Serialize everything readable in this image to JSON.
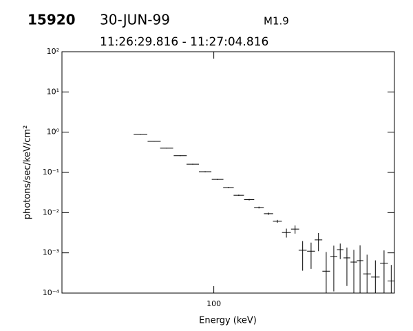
{
  "chart_data": {
    "type": "errorbar",
    "title": "15920",
    "date": "30-JUN-99",
    "class": "M1.9",
    "subtitle": "11:26:29.816 - 11:27:04.816",
    "xlabel": "Energy (keV)",
    "ylabel": "photons/sec/keV/cm²",
    "xlog": true,
    "ylog": true,
    "color": "#000000",
    "xlim": [
      25,
      520
    ],
    "xticks": [
      100
    ],
    "ylim": [
      0.0001,
      100
    ],
    "yticks": [
      {
        "value": 100,
        "label": "10²"
      },
      {
        "value": 10,
        "label": "10¹"
      },
      {
        "value": 1,
        "label": "10⁰"
      },
      {
        "value": 0.1,
        "label": "10⁻¹"
      },
      {
        "value": 0.01,
        "label": "10⁻²"
      },
      {
        "value": 0.001,
        "label": "10⁻³"
      },
      {
        "value": 0.0001,
        "label": "10⁻⁴"
      }
    ],
    "x": [
      51.2,
      58.0,
      65.0,
      73.6,
      82.5,
      92.4,
      103.5,
      114.3,
      125.6,
      138.1,
      151,
      164.8,
      178.7,
      194,
      210,
      225,
      243,
      260,
      279,
      299,
      317,
      337,
      359,
      380,
      405,
      437,
      473,
      505
    ],
    "values": [
      0.88,
      0.59,
      0.4,
      0.26,
      0.16,
      0.104,
      0.067,
      0.042,
      0.027,
      0.021,
      0.0134,
      0.0094,
      0.0061,
      0.0032,
      0.0039,
      0.00116,
      0.0011,
      0.0021,
      0.00035,
      0.00081,
      0.0012,
      0.00075,
      0.00059,
      0.00064,
      0.0003,
      0.00025,
      0.00055,
      0.0002
    ],
    "errors": [
      0.02,
      0.012,
      0.008,
      0.006,
      0.004,
      0.003,
      0.002,
      0.0014,
      0.001,
      0.0009,
      0.0007,
      0.0006,
      0.0005,
      0.0008,
      0.0009,
      0.0008,
      0.0007,
      0.001,
      0.0007,
      0.0007,
      0.0005,
      0.0006,
      0.0006,
      0.0009,
      0.0006,
      0.0004,
      0.0006,
      0.0003
    ]
  }
}
